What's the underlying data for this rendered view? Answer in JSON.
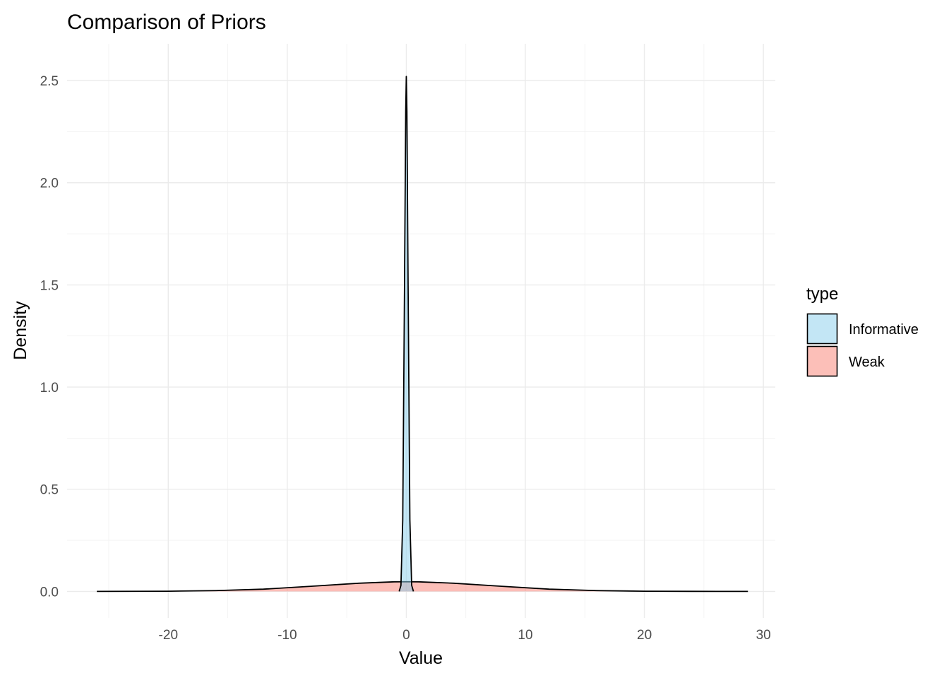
{
  "chart_data": {
    "type": "area",
    "title": "Comparison of Priors",
    "xlabel": "Value",
    "ylabel": "Density",
    "xlim": [
      -28.5,
      31
    ],
    "ylim": [
      -0.13,
      2.68
    ],
    "x_ticks": [
      -20,
      -10,
      0,
      10,
      20,
      30
    ],
    "x_tick_labels": [
      "-20",
      "-10",
      "0",
      "10",
      "20",
      "30"
    ],
    "y_ticks": [
      0.0,
      0.5,
      1.0,
      1.5,
      2.0,
      2.5
    ],
    "y_tick_labels": [
      "0.0",
      "0.5",
      "1.0",
      "1.5",
      "2.0",
      "2.5"
    ],
    "grid": true,
    "legend": {
      "title": "type",
      "position": "right"
    },
    "series": [
      {
        "name": "Informative",
        "color": "#87CEEB",
        "fill_opacity": 0.5,
        "x": [
          -0.6,
          -0.45,
          -0.3,
          -0.15,
          -0.05,
          0.0,
          0.05,
          0.15,
          0.3,
          0.45,
          0.6
        ],
        "y": [
          0.0,
          0.03,
          0.35,
          1.5,
          2.35,
          2.52,
          2.35,
          1.5,
          0.35,
          0.03,
          0.0
        ]
      },
      {
        "name": "Weak",
        "color": "#FA8072",
        "fill_opacity": 0.5,
        "x": [
          -26,
          -20,
          -16,
          -12,
          -8,
          -4,
          -1,
          0,
          1,
          4,
          8,
          12,
          16,
          20,
          24,
          28.7
        ],
        "y": [
          0.0,
          0.001,
          0.004,
          0.011,
          0.025,
          0.04,
          0.047,
          0.0472,
          0.047,
          0.04,
          0.025,
          0.011,
          0.004,
          0.001,
          0.0002,
          0.0
        ]
      }
    ]
  }
}
